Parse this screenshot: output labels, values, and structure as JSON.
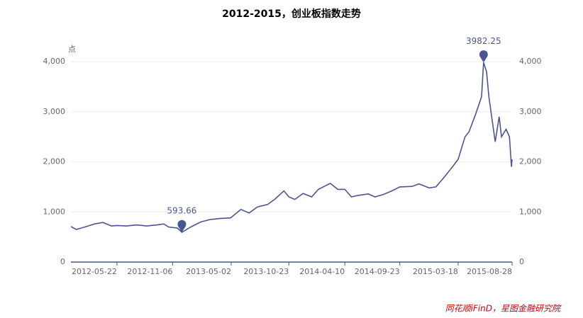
{
  "chart_data": {
    "type": "line",
    "title": "2012-2015，创业板指数走势",
    "y_unit": "点",
    "source": "同花顺iFinD，星图金融研究院",
    "x": [
      "2012-01-04",
      "2012-01-20",
      "2012-02-15",
      "2012-03-15",
      "2012-04-10",
      "2012-05-05",
      "2012-05-22",
      "2012-06-20",
      "2012-07-20",
      "2012-08-20",
      "2012-09-20",
      "2012-10-10",
      "2012-10-25",
      "2012-11-20",
      "2012-12-04",
      "2012-12-31",
      "2013-01-30",
      "2013-02-28",
      "2013-03-30",
      "2013-04-30",
      "2013-05-31",
      "2013-06-25",
      "2013-07-20",
      "2013-08-20",
      "2013-09-10",
      "2013-10-08",
      "2013-10-23",
      "2013-11-10",
      "2013-12-05",
      "2013-12-31",
      "2014-01-20",
      "2014-02-25",
      "2014-03-20",
      "2014-04-10",
      "2014-04-30",
      "2014-05-20",
      "2014-06-20",
      "2014-07-10",
      "2014-08-05",
      "2014-08-30",
      "2014-09-23",
      "2014-10-30",
      "2014-11-20",
      "2014-12-20",
      "2015-01-10",
      "2015-02-05",
      "2015-03-01",
      "2015-03-18",
      "2015-04-08",
      "2015-04-20",
      "2015-05-10",
      "2015-05-28",
      "2015-06-03",
      "2015-06-12",
      "2015-06-19",
      "2015-07-08",
      "2015-07-20",
      "2015-07-27",
      "2015-08-10",
      "2015-08-20",
      "2015-08-26",
      "2015-08-28"
    ],
    "series": [
      {
        "name": "创业板指数",
        "color": "#4a5690",
        "values": [
          710,
          650,
          700,
          760,
          790,
          720,
          730,
          720,
          740,
          720,
          740,
          760,
          700,
          680,
          593.66,
          700,
          800,
          850,
          870,
          880,
          1050,
          980,
          1100,
          1150,
          1250,
          1420,
          1300,
          1250,
          1370,
          1300,
          1450,
          1570,
          1450,
          1450,
          1300,
          1330,
          1360,
          1300,
          1350,
          1420,
          1500,
          1510,
          1560,
          1480,
          1500,
          1700,
          1900,
          2050,
          2500,
          2600,
          2950,
          3300,
          3982.25,
          3800,
          3300,
          2400,
          2900,
          2500,
          2650,
          2500,
          1900,
          2050
        ]
      }
    ],
    "annotations": [
      {
        "x": "2012-12-04",
        "value": 593.66,
        "label": "593.66"
      },
      {
        "x": "2015-06-03",
        "value": 3982.25,
        "label": "3982.25"
      }
    ],
    "xlim": [
      "2012-01-04",
      "2015-08-28"
    ],
    "xticks": [
      "2012-05-22",
      "2012-11-06",
      "2013-05-02",
      "2013-10-23",
      "2014-04-10",
      "2014-09-23",
      "2015-03-18",
      "2015-08-28"
    ],
    "ylim": [
      0,
      4000
    ],
    "yticks": [
      0,
      {
        "value": 1000,
        "label": "1,000"
      },
      {
        "value": 2000,
        "label": "2,000"
      },
      {
        "value": 3000,
        "label": "3,000"
      },
      {
        "value": 4000,
        "label": "4,000"
      }
    ],
    "y2lim": [
      0,
      4000
    ],
    "y2ticks": [
      0,
      {
        "value": 1000,
        "label": "1,000"
      },
      {
        "value": 2000,
        "label": "2,000"
      },
      {
        "value": 3000,
        "label": "3,000"
      },
      {
        "value": 4000,
        "label": "4,000"
      }
    ],
    "grid": true
  }
}
